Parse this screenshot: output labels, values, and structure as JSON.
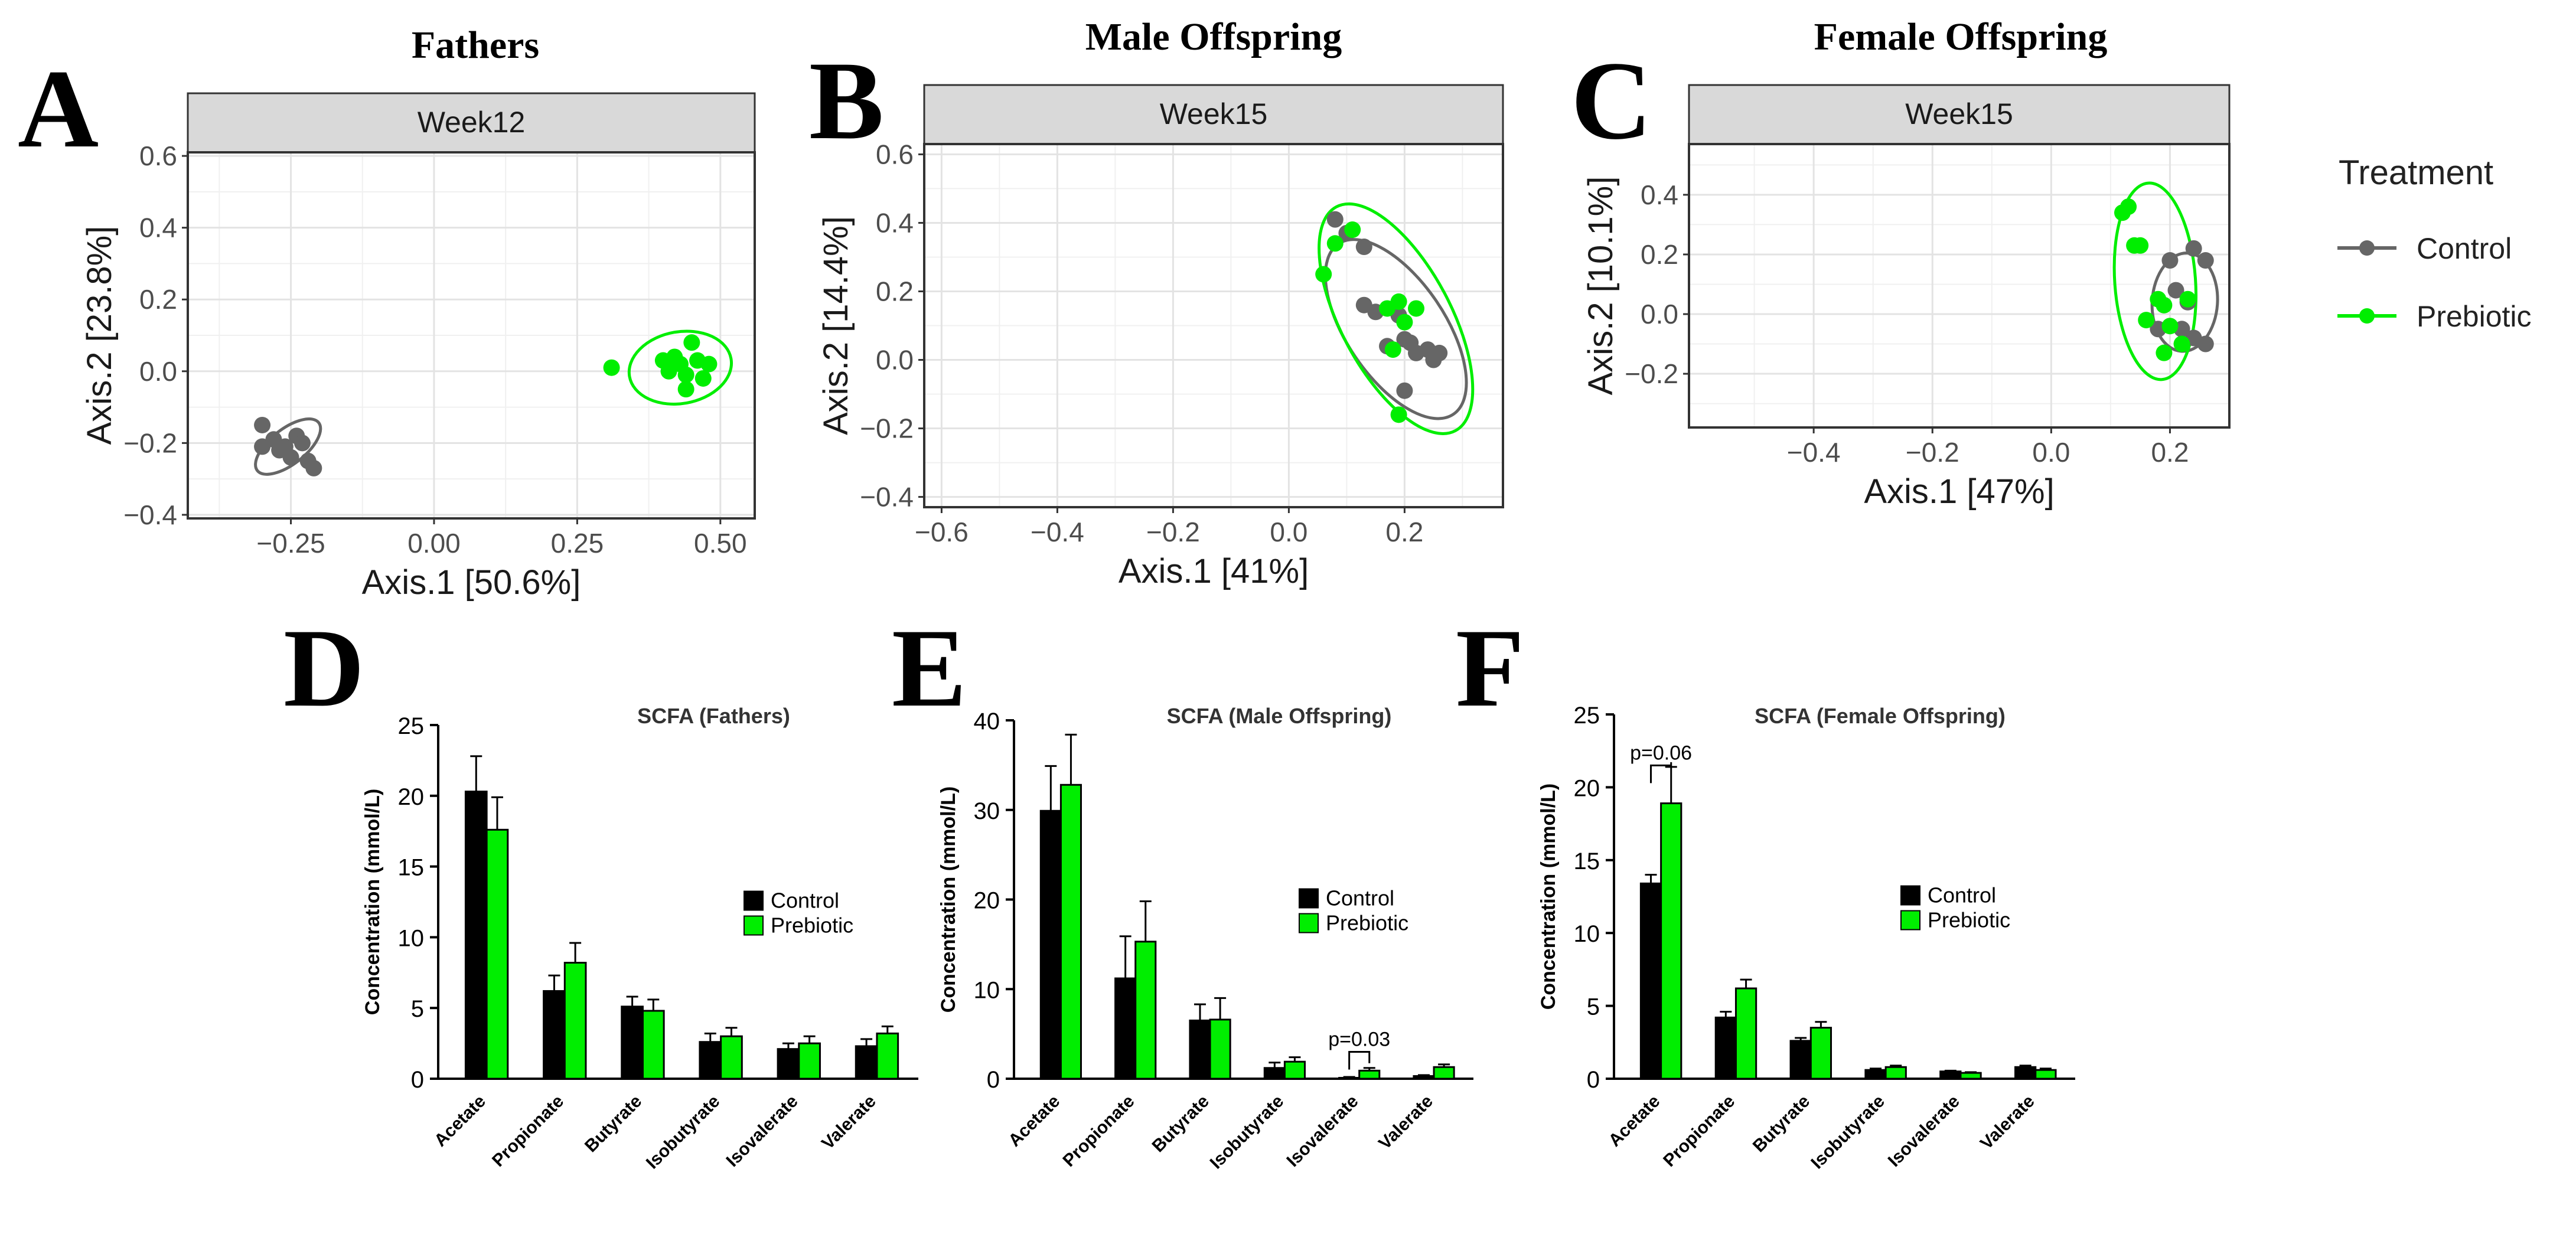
{
  "colors": {
    "control_pca": "#666666",
    "prebiotic": "#00ee00",
    "control_bar": "#000000"
  },
  "legend": {
    "title": "Treatment",
    "control": "Control",
    "prebiotic": "Prebiotic"
  },
  "chart_data": [
    {
      "id": "A",
      "letter": "A",
      "type": "scatter",
      "title": "Fathers",
      "facet": "Week12",
      "xlabel": "Axis.1   [50.6%]",
      "ylabel": "Axis.2   [23.8%]",
      "xlim": [
        -0.43,
        0.56
      ],
      "ylim": [
        -0.41,
        0.61
      ],
      "xticks": [
        -0.25,
        0.0,
        0.25,
        0.5
      ],
      "xtick_labels": [
        "−0.25",
        "0.00",
        "0.25",
        "0.50"
      ],
      "yticks": [
        -0.4,
        -0.2,
        0.0,
        0.2,
        0.4,
        0.6
      ],
      "ytick_labels": [
        "−0.4",
        "−0.2",
        "0.0",
        "0.2",
        "0.4",
        "0.6"
      ],
      "series": [
        {
          "name": "Control",
          "points": [
            [
              -0.3,
              -0.15
            ],
            [
              -0.3,
              -0.21
            ],
            [
              -0.28,
              -0.19
            ],
            [
              -0.27,
              -0.22
            ],
            [
              -0.26,
              -0.21
            ],
            [
              -0.25,
              -0.24
            ],
            [
              -0.24,
              -0.18
            ],
            [
              -0.23,
              -0.2
            ],
            [
              -0.22,
              -0.25
            ],
            [
              -0.21,
              -0.27
            ]
          ],
          "ellipse": {
            "cx": -0.255,
            "cy": -0.21,
            "rx": 0.068,
            "ry": 0.049,
            "angle": -38
          }
        },
        {
          "name": "Prebiotic",
          "points": [
            [
              0.31,
              0.01
            ],
            [
              0.4,
              0.03
            ],
            [
              0.41,
              0.0
            ],
            [
              0.42,
              0.04
            ],
            [
              0.43,
              0.02
            ],
            [
              0.44,
              -0.01
            ],
            [
              0.44,
              -0.05
            ],
            [
              0.45,
              0.08
            ],
            [
              0.46,
              0.03
            ],
            [
              0.47,
              -0.02
            ],
            [
              0.48,
              0.02
            ]
          ],
          "ellipse": {
            "cx": 0.43,
            "cy": 0.01,
            "rx": 0.09,
            "ry": 0.1,
            "angle": -10
          }
        }
      ]
    },
    {
      "id": "B",
      "letter": "B",
      "type": "scatter",
      "title": "Male Offspring",
      "facet": "Week15",
      "xlabel": "Axis.1   [41%]",
      "ylabel": "Axis.2   [14.4%]",
      "xlim": [
        -0.63,
        0.37
      ],
      "ylim": [
        -0.43,
        0.63
      ],
      "xticks": [
        -0.6,
        -0.4,
        -0.2,
        0.0,
        0.2
      ],
      "xtick_labels": [
        "−0.6",
        "−0.4",
        "−0.2",
        "0.0",
        "0.2"
      ],
      "yticks": [
        -0.4,
        -0.2,
        0.0,
        0.2,
        0.4,
        0.6
      ],
      "ytick_labels": [
        "−0.4",
        "−0.2",
        "0.0",
        "0.2",
        "0.4",
        "0.6"
      ],
      "series": [
        {
          "name": "Control",
          "points": [
            [
              0.08,
              0.41
            ],
            [
              0.1,
              0.37
            ],
            [
              0.13,
              0.33
            ],
            [
              0.13,
              0.16
            ],
            [
              0.15,
              0.14
            ],
            [
              0.17,
              0.04
            ],
            [
              0.19,
              0.13
            ],
            [
              0.2,
              0.06
            ],
            [
              0.21,
              0.05
            ],
            [
              0.22,
              0.02
            ],
            [
              0.24,
              0.03
            ],
            [
              0.25,
              0.0
            ],
            [
              0.26,
              0.02
            ],
            [
              0.2,
              -0.09
            ]
          ],
          "ellipse": {
            "cx": 0.185,
            "cy": 0.09,
            "rx": 0.085,
            "ry": 0.3,
            "angle": -34
          }
        },
        {
          "name": "Prebiotic",
          "points": [
            [
              0.06,
              0.25
            ],
            [
              0.08,
              0.34
            ],
            [
              0.11,
              0.38
            ],
            [
              0.17,
              0.15
            ],
            [
              0.19,
              0.17
            ],
            [
              0.2,
              0.11
            ],
            [
              0.22,
              0.15
            ],
            [
              0.18,
              0.03
            ],
            [
              0.19,
              -0.16
            ]
          ],
          "ellipse": {
            "cx": 0.185,
            "cy": 0.12,
            "rx": 0.095,
            "ry": 0.37,
            "angle": -28
          }
        }
      ]
    },
    {
      "id": "C",
      "letter": "C",
      "type": "scatter",
      "title": "Female Offspring",
      "facet": "Week15",
      "xlabel": "Axis.1   [47%]",
      "ylabel": "Axis.2   [10.1%]",
      "xlim": [
        -0.61,
        0.3
      ],
      "ylim": [
        -0.38,
        0.57
      ],
      "xticks": [
        -0.4,
        -0.2,
        0.0,
        0.2
      ],
      "xtick_labels": [
        "−0.4",
        "−0.2",
        "0.0",
        "0.2"
      ],
      "yticks": [
        -0.2,
        0.0,
        0.2,
        0.4
      ],
      "ytick_labels": [
        "−0.2",
        "0.0",
        "0.2",
        "0.4"
      ],
      "series": [
        {
          "name": "Control",
          "points": [
            [
              0.2,
              0.18
            ],
            [
              0.24,
              0.22
            ],
            [
              0.26,
              0.18
            ],
            [
              0.21,
              0.08
            ],
            [
              0.23,
              0.04
            ],
            [
              0.22,
              -0.05
            ],
            [
              0.24,
              -0.08
            ],
            [
              0.26,
              -0.1
            ],
            [
              0.18,
              -0.05
            ]
          ],
          "ellipse": {
            "cx": 0.225,
            "cy": 0.04,
            "rx": 0.055,
            "ry": 0.165,
            "angle": 4
          }
        },
        {
          "name": "Prebiotic",
          "points": [
            [
              0.12,
              0.34
            ],
            [
              0.13,
              0.36
            ],
            [
              0.14,
              0.23
            ],
            [
              0.15,
              0.23
            ],
            [
              0.18,
              0.05
            ],
            [
              0.19,
              0.03
            ],
            [
              0.2,
              -0.04
            ],
            [
              0.19,
              -0.13
            ],
            [
              0.23,
              0.05
            ],
            [
              0.22,
              -0.1
            ],
            [
              0.16,
              -0.02
            ]
          ],
          "ellipse": {
            "cx": 0.175,
            "cy": 0.11,
            "rx": 0.068,
            "ry": 0.33,
            "angle": -4
          }
        }
      ]
    },
    {
      "id": "D",
      "letter": "D",
      "type": "bar",
      "title": "SCFA (Fathers)",
      "ylabel": "Concentration (mmol/L)",
      "ylim": [
        0,
        25
      ],
      "yticks": [
        0,
        5,
        10,
        15,
        20,
        25
      ],
      "categories": [
        "Acetate",
        "Propionate",
        "Butyrate",
        "Isobutyrate",
        "Isovalerate",
        "Valerate"
      ],
      "series": [
        {
          "name": "Control",
          "values": [
            20.3,
            6.2,
            5.1,
            2.6,
            2.1,
            2.3
          ],
          "errors": [
            2.5,
            1.1,
            0.7,
            0.6,
            0.4,
            0.5
          ]
        },
        {
          "name": "Prebiotic",
          "values": [
            17.6,
            8.2,
            4.8,
            3.0,
            2.5,
            3.2
          ],
          "errors": [
            2.3,
            1.4,
            0.8,
            0.6,
            0.5,
            0.5
          ]
        }
      ]
    },
    {
      "id": "E",
      "letter": "E",
      "type": "bar",
      "title": "SCFA (Male Offspring)",
      "ylabel": "Concentration (mmol/L)",
      "ylim": [
        0,
        40
      ],
      "yticks": [
        0,
        10,
        20,
        30,
        40
      ],
      "categories": [
        "Acetate",
        "Propionate",
        "Butyrate",
        "Isobutyrate",
        "Isovalerate",
        "Valerate"
      ],
      "series": [
        {
          "name": "Control",
          "values": [
            29.9,
            11.2,
            6.5,
            1.2,
            0.1,
            0.3
          ],
          "errors": [
            5.0,
            4.7,
            1.8,
            0.6,
            0.1,
            0.1
          ]
        },
        {
          "name": "Prebiotic",
          "values": [
            32.8,
            15.3,
            6.6,
            1.9,
            0.9,
            1.3
          ],
          "errors": [
            5.6,
            4.5,
            2.4,
            0.5,
            0.3,
            0.3
          ]
        }
      ],
      "annotation": {
        "text": "p=0.03",
        "category": "Isovalerate",
        "y": 3.0
      }
    },
    {
      "id": "F",
      "letter": "F",
      "type": "bar",
      "title": "SCFA (Female Offspring)",
      "ylabel": "Concentration (mmol/L)",
      "ylim": [
        0,
        25
      ],
      "yticks": [
        0,
        5,
        10,
        15,
        20,
        25
      ],
      "categories": [
        "Acetate",
        "Propionate",
        "Butyrate",
        "Isobutyrate",
        "Isovalerate",
        "Valerate"
      ],
      "series": [
        {
          "name": "Control",
          "values": [
            13.4,
            4.2,
            2.6,
            0.6,
            0.5,
            0.8
          ],
          "errors": [
            0.6,
            0.4,
            0.2,
            0.1,
            0.05,
            0.1
          ]
        },
        {
          "name": "Prebiotic",
          "values": [
            18.9,
            6.2,
            3.5,
            0.8,
            0.4,
            0.6
          ],
          "errors": [
            2.5,
            0.6,
            0.4,
            0.1,
            0.05,
            0.1
          ]
        }
      ],
      "annotation": {
        "text": "p=0.06",
        "category": "Acetate",
        "y": 21.5
      }
    }
  ]
}
